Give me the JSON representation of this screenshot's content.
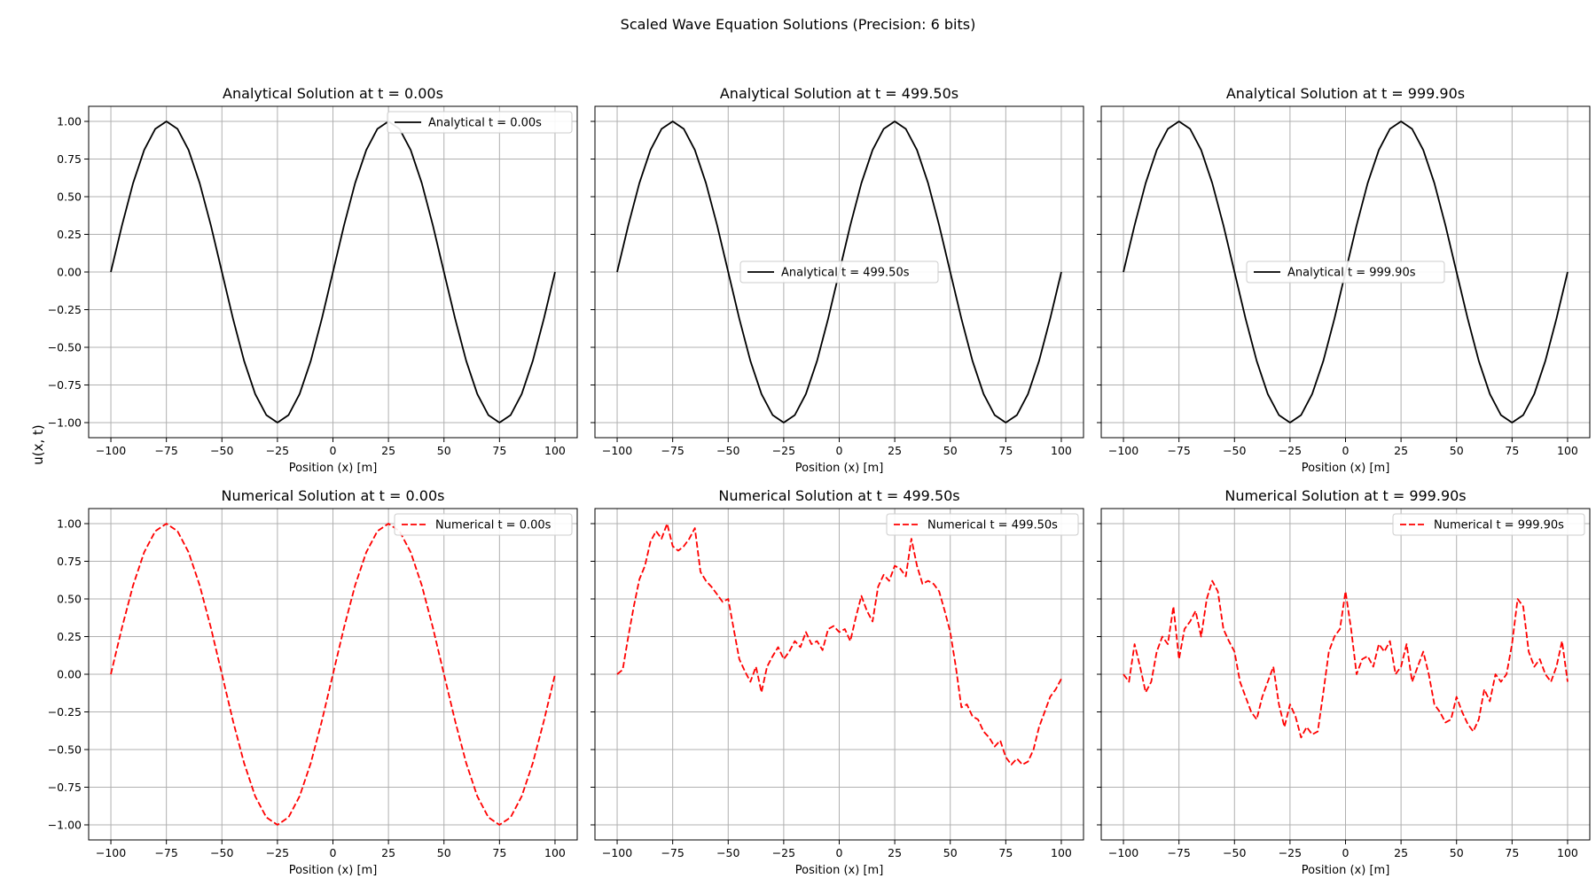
{
  "figure": {
    "suptitle": "Scaled Wave Equation Solutions (Precision: 6 bits)",
    "ylabel": "u(x, t)",
    "xlabel": "Position (x) [m]"
  },
  "colors": {
    "analytical": "#000000",
    "numerical": "#ff0000",
    "grid": "#b0b0b0"
  },
  "chart_data": [
    {
      "type": "line",
      "row": 0,
      "col": 0,
      "title": "Analytical Solution at t = 0.00s",
      "xlabel": "Position (x) [m]",
      "ylabel": "u(x, t)",
      "xlim": [
        -110,
        110
      ],
      "ylim": [
        -1.1,
        1.1
      ],
      "xticks": [
        -100,
        -75,
        -50,
        -25,
        0,
        25,
        50,
        75,
        100
      ],
      "yticks": [
        -1.0,
        -0.75,
        -0.5,
        -0.25,
        0.0,
        0.25,
        0.5,
        0.75,
        1.0
      ],
      "grid": true,
      "legend_loc": "upper right",
      "series": [
        {
          "name": "Analytical t = 0.00s",
          "style": "solid",
          "color": "#000000",
          "x": [
            -100,
            -95,
            -90,
            -85,
            -80,
            -75,
            -70,
            -65,
            -60,
            -55,
            -50,
            -45,
            -40,
            -35,
            -30,
            -25,
            -20,
            -15,
            -10,
            -5,
            0,
            5,
            10,
            15,
            20,
            25,
            30,
            35,
            40,
            45,
            50,
            55,
            60,
            65,
            70,
            75,
            80,
            85,
            90,
            95,
            100
          ],
          "y": [
            0,
            0.31,
            0.59,
            0.81,
            0.95,
            1,
            0.95,
            0.81,
            0.59,
            0.31,
            0,
            -0.31,
            -0.59,
            -0.81,
            -0.95,
            -1,
            -0.95,
            -0.81,
            -0.59,
            -0.31,
            0,
            0.31,
            0.59,
            0.81,
            0.95,
            1,
            0.95,
            0.81,
            0.59,
            0.31,
            0,
            -0.31,
            -0.59,
            -0.81,
            -0.95,
            -1,
            -0.95,
            -0.81,
            -0.59,
            -0.31,
            0
          ]
        }
      ]
    },
    {
      "type": "line",
      "row": 0,
      "col": 1,
      "title": "Analytical Solution at t = 499.50s",
      "xlabel": "Position (x) [m]",
      "xlim": [
        -110,
        110
      ],
      "ylim": [
        -1.1,
        1.1
      ],
      "xticks": [
        -100,
        -75,
        -50,
        -25,
        0,
        25,
        50,
        75,
        100
      ],
      "yticks": [
        -1.0,
        -0.75,
        -0.5,
        -0.25,
        0.0,
        0.25,
        0.5,
        0.75,
        1.0
      ],
      "grid": true,
      "legend_loc": "center",
      "series": [
        {
          "name": "Analytical t = 499.50s",
          "style": "solid",
          "color": "#000000",
          "x": [
            -100,
            -95,
            -90,
            -85,
            -80,
            -75,
            -70,
            -65,
            -60,
            -55,
            -50,
            -45,
            -40,
            -35,
            -30,
            -25,
            -20,
            -15,
            -10,
            -5,
            0,
            5,
            10,
            15,
            20,
            25,
            30,
            35,
            40,
            45,
            50,
            55,
            60,
            65,
            70,
            75,
            80,
            85,
            90,
            95,
            100
          ],
          "y": [
            0,
            0.31,
            0.59,
            0.81,
            0.95,
            1,
            0.95,
            0.81,
            0.59,
            0.31,
            0,
            -0.31,
            -0.59,
            -0.81,
            -0.95,
            -1,
            -0.95,
            -0.81,
            -0.59,
            -0.31,
            0,
            0.31,
            0.59,
            0.81,
            0.95,
            1,
            0.95,
            0.81,
            0.59,
            0.31,
            0,
            -0.31,
            -0.59,
            -0.81,
            -0.95,
            -1,
            -0.95,
            -0.81,
            -0.59,
            -0.31,
            0
          ]
        }
      ]
    },
    {
      "type": "line",
      "row": 0,
      "col": 2,
      "title": "Analytical Solution at t = 999.90s",
      "xlabel": "Position (x) [m]",
      "xlim": [
        -110,
        110
      ],
      "ylim": [
        -1.1,
        1.1
      ],
      "xticks": [
        -100,
        -75,
        -50,
        -25,
        0,
        25,
        50,
        75,
        100
      ],
      "yticks": [
        -1.0,
        -0.75,
        -0.5,
        -0.25,
        0.0,
        0.25,
        0.5,
        0.75,
        1.0
      ],
      "grid": true,
      "legend_loc": "center",
      "series": [
        {
          "name": "Analytical t = 999.90s",
          "style": "solid",
          "color": "#000000",
          "x": [
            -100,
            -95,
            -90,
            -85,
            -80,
            -75,
            -70,
            -65,
            -60,
            -55,
            -50,
            -45,
            -40,
            -35,
            -30,
            -25,
            -20,
            -15,
            -10,
            -5,
            0,
            5,
            10,
            15,
            20,
            25,
            30,
            35,
            40,
            45,
            50,
            55,
            60,
            65,
            70,
            75,
            80,
            85,
            90,
            95,
            100
          ],
          "y": [
            0,
            0.31,
            0.59,
            0.81,
            0.95,
            1,
            0.95,
            0.81,
            0.59,
            0.31,
            0,
            -0.31,
            -0.59,
            -0.81,
            -0.95,
            -1,
            -0.95,
            -0.81,
            -0.59,
            -0.31,
            0,
            0.31,
            0.59,
            0.81,
            0.95,
            1,
            0.95,
            0.81,
            0.59,
            0.31,
            0,
            -0.31,
            -0.59,
            -0.81,
            -0.95,
            -1,
            -0.95,
            -0.81,
            -0.59,
            -0.31,
            0
          ]
        }
      ]
    },
    {
      "type": "line",
      "row": 1,
      "col": 0,
      "title": "Numerical Solution at t = 0.00s",
      "xlabel": "Position (x) [m]",
      "ylabel": "u(x, t)",
      "xlim": [
        -110,
        110
      ],
      "ylim": [
        -1.1,
        1.1
      ],
      "xticks": [
        -100,
        -75,
        -50,
        -25,
        0,
        25,
        50,
        75,
        100
      ],
      "yticks": [
        -1.0,
        -0.75,
        -0.5,
        -0.25,
        0.0,
        0.25,
        0.5,
        0.75,
        1.0
      ],
      "grid": true,
      "legend_loc": "upper right",
      "series": [
        {
          "name": "Numerical t = 0.00s",
          "style": "dashed",
          "color": "#ff0000",
          "x": [
            -100,
            -95,
            -90,
            -85,
            -80,
            -75,
            -70,
            -65,
            -60,
            -55,
            -50,
            -45,
            -40,
            -35,
            -30,
            -25,
            -20,
            -15,
            -10,
            -5,
            0,
            5,
            10,
            15,
            20,
            25,
            30,
            35,
            40,
            45,
            50,
            55,
            60,
            65,
            70,
            75,
            80,
            85,
            90,
            95,
            100
          ],
          "y": [
            0,
            0.31,
            0.59,
            0.81,
            0.95,
            1,
            0.95,
            0.81,
            0.59,
            0.31,
            0,
            -0.31,
            -0.59,
            -0.81,
            -0.95,
            -1,
            -0.95,
            -0.81,
            -0.59,
            -0.31,
            0,
            0.31,
            0.59,
            0.81,
            0.95,
            1,
            0.95,
            0.81,
            0.59,
            0.31,
            0,
            -0.31,
            -0.59,
            -0.81,
            -0.95,
            -1,
            -0.95,
            -0.81,
            -0.59,
            -0.31,
            0
          ]
        }
      ]
    },
    {
      "type": "line",
      "row": 1,
      "col": 1,
      "title": "Numerical Solution at t = 499.50s",
      "xlabel": "Position (x) [m]",
      "xlim": [
        -110,
        110
      ],
      "ylim": [
        -1.1,
        1.1
      ],
      "xticks": [
        -100,
        -75,
        -50,
        -25,
        0,
        25,
        50,
        75,
        100
      ],
      "yticks": [
        -1.0,
        -0.75,
        -0.5,
        -0.25,
        0.0,
        0.25,
        0.5,
        0.75,
        1.0
      ],
      "grid": true,
      "legend_loc": "upper right",
      "series": [
        {
          "name": "Numerical t = 499.50s",
          "style": "dashed",
          "color": "#ff0000",
          "x": [
            -100,
            -97.5,
            -95,
            -92.5,
            -90,
            -87.5,
            -85,
            -82.5,
            -80,
            -77.5,
            -75,
            -72.5,
            -70,
            -67.5,
            -65,
            -62.5,
            -60,
            -57.5,
            -55,
            -52.5,
            -50,
            -47.5,
            -45,
            -42.5,
            -40,
            -37.5,
            -35,
            -32.5,
            -30,
            -27.5,
            -25,
            -22.5,
            -20,
            -17.5,
            -15,
            -12.5,
            -10,
            -7.5,
            -5,
            -2.5,
            0,
            2.5,
            5,
            7.5,
            10,
            12.5,
            15,
            17.5,
            20,
            22.5,
            25,
            27.5,
            30,
            32.5,
            35,
            37.5,
            40,
            42.5,
            45,
            47.5,
            50,
            52.5,
            55,
            57.5,
            60,
            62.5,
            65,
            67.5,
            70,
            72.5,
            75,
            77.5,
            80,
            82.5,
            85,
            87.5,
            90,
            92.5,
            95,
            97.5,
            100
          ],
          "y": [
            0,
            0.03,
            0.25,
            0.45,
            0.63,
            0.72,
            0.88,
            0.95,
            0.9,
            1.0,
            0.85,
            0.82,
            0.85,
            0.9,
            0.97,
            0.68,
            0.62,
            0.58,
            0.53,
            0.48,
            0.5,
            0.3,
            0.1,
            0.02,
            -0.05,
            0.05,
            -0.12,
            0.05,
            0.12,
            0.18,
            0.1,
            0.15,
            0.22,
            0.18,
            0.28,
            0.2,
            0.22,
            0.16,
            0.3,
            0.32,
            0.28,
            0.3,
            0.22,
            0.38,
            0.52,
            0.42,
            0.35,
            0.58,
            0.66,
            0.62,
            0.72,
            0.7,
            0.65,
            0.9,
            0.72,
            0.6,
            0.62,
            0.6,
            0.55,
            0.42,
            0.28,
            0.05,
            -0.22,
            -0.2,
            -0.28,
            -0.3,
            -0.38,
            -0.42,
            -0.48,
            -0.44,
            -0.55,
            -0.6,
            -0.56,
            -0.6,
            -0.58,
            -0.5,
            -0.35,
            -0.25,
            -0.15,
            -0.1,
            -0.03
          ]
        }
      ]
    },
    {
      "type": "line",
      "row": 1,
      "col": 2,
      "title": "Numerical Solution at t = 999.90s",
      "xlabel": "Position (x) [m]",
      "xlim": [
        -110,
        110
      ],
      "ylim": [
        -1.1,
        1.1
      ],
      "xticks": [
        -100,
        -75,
        -50,
        -25,
        0,
        25,
        50,
        75,
        100
      ],
      "yticks": [
        -1.0,
        -0.75,
        -0.5,
        -0.25,
        0.0,
        0.25,
        0.5,
        0.75,
        1.0
      ],
      "grid": true,
      "legend_loc": "upper right",
      "series": [
        {
          "name": "Numerical t = 999.90s",
          "style": "dashed",
          "color": "#ff0000",
          "x": [
            -100,
            -97.5,
            -95,
            -92.5,
            -90,
            -87.5,
            -85,
            -82.5,
            -80,
            -77.5,
            -75,
            -72.5,
            -70,
            -67.5,
            -65,
            -62.5,
            -60,
            -57.5,
            -55,
            -52.5,
            -50,
            -47.5,
            -45,
            -42.5,
            -40,
            -37.5,
            -35,
            -32.5,
            -30,
            -27.5,
            -25,
            -22.5,
            -20,
            -17.5,
            -15,
            -12.5,
            -10,
            -7.5,
            -5,
            -2.5,
            0,
            2.5,
            5,
            7.5,
            10,
            12.5,
            15,
            17.5,
            20,
            22.5,
            25,
            27.5,
            30,
            32.5,
            35,
            37.5,
            40,
            42.5,
            45,
            47.5,
            50,
            52.5,
            55,
            57.5,
            60,
            62.5,
            65,
            67.5,
            70,
            72.5,
            75,
            77.5,
            80,
            82.5,
            85,
            87.5,
            90,
            92.5,
            95,
            97.5,
            100
          ],
          "y": [
            0,
            -0.05,
            0.2,
            0.05,
            -0.12,
            -0.05,
            0.15,
            0.25,
            0.2,
            0.45,
            0.1,
            0.3,
            0.35,
            0.42,
            0.25,
            0.5,
            0.62,
            0.55,
            0.3,
            0.22,
            0.15,
            -0.05,
            -0.15,
            -0.25,
            -0.3,
            -0.15,
            -0.05,
            0.05,
            -0.2,
            -0.35,
            -0.2,
            -0.28,
            -0.42,
            -0.35,
            -0.4,
            -0.38,
            -0.12,
            0.15,
            0.25,
            0.3,
            0.55,
            0.3,
            0.0,
            0.1,
            0.12,
            0.05,
            0.2,
            0.15,
            0.22,
            0.0,
            0.05,
            0.2,
            -0.05,
            0.05,
            0.15,
            0.0,
            -0.2,
            -0.25,
            -0.32,
            -0.3,
            -0.15,
            -0.25,
            -0.33,
            -0.38,
            -0.3,
            -0.1,
            -0.18,
            0.0,
            -0.05,
            0.0,
            0.2,
            0.5,
            0.45,
            0.15,
            0.05,
            0.1,
            0.0,
            -0.05,
            0.05,
            0.22,
            -0.05
          ]
        }
      ]
    }
  ]
}
